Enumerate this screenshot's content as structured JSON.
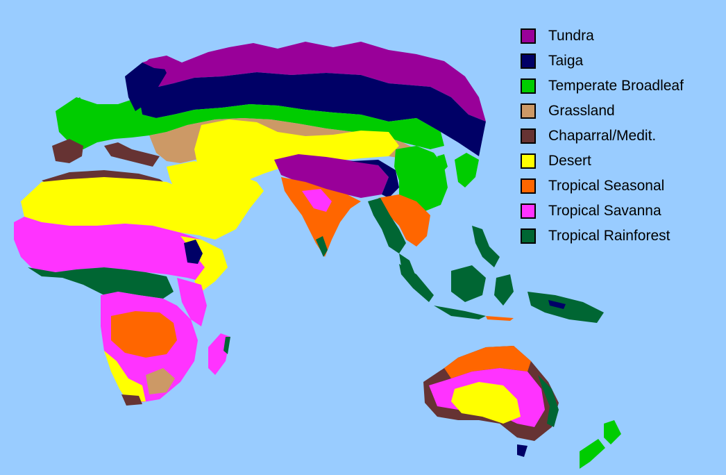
{
  "background_color": "#99ccff",
  "legend": {
    "items": [
      {
        "key": "tundra",
        "label": "Tundra",
        "color": "#990099"
      },
      {
        "key": "taiga",
        "label": "Taiga",
        "color": "#000066"
      },
      {
        "key": "temperate",
        "label": "Temperate Broadleaf",
        "color": "#00cc00"
      },
      {
        "key": "grassland",
        "label": "Grassland",
        "color": "#cc9966"
      },
      {
        "key": "chaparral",
        "label": "Chaparral/Medit.",
        "color": "#663333"
      },
      {
        "key": "desert",
        "label": "Desert",
        "color": "#ffff00"
      },
      {
        "key": "seasonal",
        "label": "Tropical Seasonal",
        "color": "#ff6600"
      },
      {
        "key": "savanna",
        "label": "Tropical Savanna",
        "color": "#ff33ff"
      },
      {
        "key": "rainforest",
        "label": "Tropical Rainforest",
        "color": "#006633"
      }
    ]
  }
}
